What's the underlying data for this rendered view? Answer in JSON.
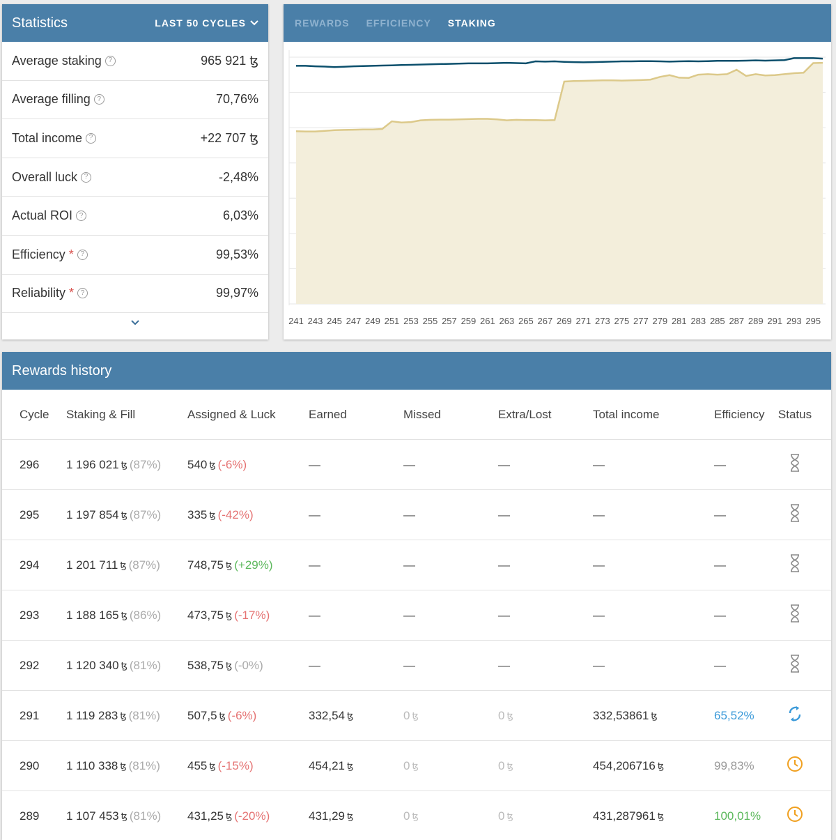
{
  "stats": {
    "title": "Statistics",
    "period": "LAST 50 CYCLES",
    "rows": [
      {
        "label": "Average staking",
        "value": "965 921 ꜩ",
        "required": false
      },
      {
        "label": "Average filling",
        "value": "70,76%",
        "required": false
      },
      {
        "label": "Total income",
        "value": "+22 707 ꜩ",
        "required": false
      },
      {
        "label": "Overall luck",
        "value": "-2,48%",
        "required": false
      },
      {
        "label": "Actual ROI",
        "value": "6,03%",
        "required": false
      },
      {
        "label": "Efficiency",
        "value": "99,53%",
        "required": true
      },
      {
        "label": "Reliability",
        "value": "99,97%",
        "required": true
      }
    ],
    "star": "*",
    "help_glyph": "?"
  },
  "chart": {
    "tabs": [
      "REWARDS",
      "EFFICIENCY",
      "STAKING"
    ],
    "active_tab": "STAKING"
  },
  "chart_data": {
    "type": "area",
    "x": [
      241,
      242,
      243,
      244,
      245,
      246,
      247,
      248,
      249,
      250,
      251,
      252,
      253,
      254,
      255,
      256,
      257,
      258,
      259,
      260,
      261,
      262,
      263,
      264,
      265,
      266,
      267,
      268,
      269,
      270,
      271,
      272,
      273,
      274,
      275,
      276,
      277,
      278,
      279,
      280,
      281,
      282,
      283,
      284,
      285,
      286,
      287,
      288,
      289,
      290,
      291,
      292,
      293,
      294,
      295,
      296
    ],
    "xticks": [
      241,
      243,
      245,
      247,
      249,
      251,
      253,
      255,
      257,
      259,
      261,
      263,
      265,
      267,
      269,
      271,
      273,
      275,
      277,
      279,
      281,
      283,
      285,
      287,
      289,
      291,
      293,
      295
    ],
    "series": [
      {
        "color": "#0b4f6c",
        "type": "line",
        "values": [
          0.965,
          0.965,
          0.963,
          0.962,
          0.96,
          0.961,
          0.963,
          0.964,
          0.965,
          0.966,
          0.967,
          0.968,
          0.969,
          0.97,
          0.971,
          0.972,
          0.973,
          0.974,
          0.975,
          0.975,
          0.975,
          0.976,
          0.977,
          0.976,
          0.975,
          0.983,
          0.982,
          0.983,
          0.981,
          0.98,
          0.979,
          0.98,
          0.981,
          0.982,
          0.983,
          0.983,
          0.984,
          0.984,
          0.983,
          0.982,
          0.983,
          0.984,
          0.983,
          0.984,
          0.985,
          0.985,
          0.985,
          0.986,
          0.987,
          0.986,
          0.987,
          0.988,
          0.996,
          0.996,
          0.996,
          0.994
        ]
      },
      {
        "color": "#dcc98a",
        "type": "area",
        "fill": "#f3eedb",
        "values": [
          0.7,
          0.699,
          0.699,
          0.701,
          0.704,
          0.705,
          0.706,
          0.707,
          0.707,
          0.709,
          0.74,
          0.735,
          0.737,
          0.744,
          0.746,
          0.747,
          0.747,
          0.748,
          0.749,
          0.75,
          0.75,
          0.748,
          0.744,
          0.746,
          0.745,
          0.745,
          0.744,
          0.745,
          0.901,
          0.903,
          0.904,
          0.905,
          0.906,
          0.906,
          0.905,
          0.906,
          0.907,
          0.909,
          0.92,
          0.927,
          0.917,
          0.916,
          0.929,
          0.931,
          0.929,
          0.931,
          0.949,
          0.924,
          0.931,
          0.926,
          0.927,
          0.931,
          0.935,
          0.937,
          0.976,
          0.977
        ]
      }
    ],
    "ylim": [
      0,
      1.0
    ],
    "grid": true,
    "axis_visible": false
  },
  "rewards": {
    "title": "Rewards history",
    "columns": [
      "Cycle",
      "Staking & Fill",
      "Assigned & Luck",
      "Earned",
      "Missed",
      "Extra/Lost",
      "Total income",
      "Efficiency",
      "Status"
    ],
    "tez": "ꜩ",
    "rows": [
      {
        "cycle": "296",
        "staking": "1 196 021",
        "fill": "(87%)",
        "assigned": "540",
        "luck": "(-6%)",
        "luck_sign": "neg",
        "earned": "—",
        "missed": "—",
        "extra": "—",
        "income": "—",
        "efficiency": "—",
        "eff_class": "dash",
        "status": "hourglass-icon"
      },
      {
        "cycle": "295",
        "staking": "1 197 854",
        "fill": "(87%)",
        "assigned": "335",
        "luck": "(-42%)",
        "luck_sign": "neg",
        "earned": "—",
        "missed": "—",
        "extra": "—",
        "income": "—",
        "efficiency": "—",
        "eff_class": "dash",
        "status": "hourglass-icon"
      },
      {
        "cycle": "294",
        "staking": "1 201 711",
        "fill": "(87%)",
        "assigned": "748,75",
        "luck": "(+29%)",
        "luck_sign": "pos",
        "earned": "—",
        "missed": "—",
        "extra": "—",
        "income": "—",
        "efficiency": "—",
        "eff_class": "dash",
        "status": "hourglass-icon"
      },
      {
        "cycle": "293",
        "staking": "1 188 165",
        "fill": "(86%)",
        "assigned": "473,75",
        "luck": "(-17%)",
        "luck_sign": "neg",
        "earned": "—",
        "missed": "—",
        "extra": "—",
        "income": "—",
        "efficiency": "—",
        "eff_class": "dash",
        "status": "hourglass-icon"
      },
      {
        "cycle": "292",
        "staking": "1 120 340",
        "fill": "(81%)",
        "assigned": "538,75",
        "luck": "(-0%)",
        "luck_sign": "zero",
        "earned": "—",
        "missed": "—",
        "extra": "—",
        "income": "—",
        "efficiency": "—",
        "eff_class": "dash",
        "status": "hourglass-icon"
      },
      {
        "cycle": "291",
        "staking": "1 119 283",
        "fill": "(81%)",
        "assigned": "507,5",
        "luck": "(-6%)",
        "luck_sign": "neg",
        "earned": "332,54",
        "missed": "0",
        "extra": "0",
        "income": "332,53861",
        "efficiency": "65,52%",
        "eff_class": "eff-blue",
        "status": "sync-icon"
      },
      {
        "cycle": "290",
        "staking": "1 110 338",
        "fill": "(81%)",
        "assigned": "455",
        "luck": "(-15%)",
        "luck_sign": "neg",
        "earned": "454,21",
        "missed": "0",
        "extra": "0",
        "income": "454,206716",
        "efficiency": "99,83%",
        "eff_class": "eff-gray",
        "status": "clock-icon"
      },
      {
        "cycle": "289",
        "staking": "1 107 453",
        "fill": "(81%)",
        "assigned": "431,25",
        "luck": "(-20%)",
        "luck_sign": "neg",
        "earned": "431,29",
        "missed": "0",
        "extra": "0",
        "income": "431,287961",
        "efficiency": "100,01%",
        "eff_class": "eff-green",
        "status": "clock-icon"
      }
    ]
  },
  "colors": {
    "header": "#4a7fa8",
    "line": "#0b4f6c",
    "area_stroke": "#dcc98a",
    "area_fill": "#f3eedb",
    "negative": "#e57373",
    "positive": "#5cb85c",
    "sync": "#3b9ad9",
    "clock": "#f0a020"
  }
}
